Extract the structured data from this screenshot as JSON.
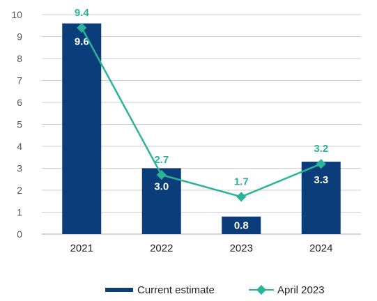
{
  "chart_data": {
    "type": "bar",
    "categories": [
      "2021",
      "2022",
      "2023",
      "2024"
    ],
    "ylim": [
      0,
      10
    ],
    "yticks": [
      "0",
      "1",
      "2",
      "3",
      "4",
      "5",
      "6",
      "7",
      "8",
      "9",
      "10"
    ],
    "grid": true,
    "legend_position": "bottom",
    "series": [
      {
        "name": "Current estimate",
        "kind": "bar",
        "color": "#0a3d7a",
        "values": [
          9.6,
          3.0,
          0.8,
          3.3
        ],
        "labels": [
          "9.6",
          "3.0",
          "0.8",
          "3.3"
        ]
      },
      {
        "name": "April 2023",
        "kind": "line",
        "color": "#2bb39a",
        "values": [
          9.4,
          2.7,
          1.7,
          3.2
        ],
        "labels": [
          "9.4",
          "2.7",
          "1.7",
          "3.2"
        ]
      }
    ]
  }
}
